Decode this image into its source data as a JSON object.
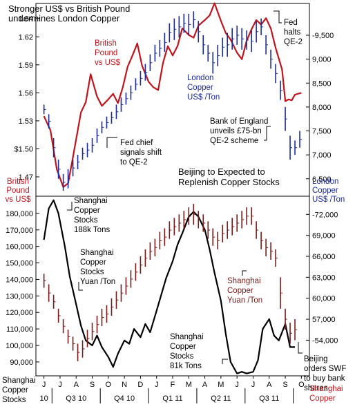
{
  "chart_data": [
    {
      "type": "line",
      "title": "Stronger US$ vs British Pound undermines London Copper",
      "title_lines": [
        "Stronger US$ vs British Pound",
        "undermines London Copper"
      ],
      "left_axis": {
        "ticks": [
          1.47,
          1.5,
          1.53,
          1.56,
          1.59,
          1.62,
          1.64
        ],
        "tick_labels": [
          "1.47",
          "$1.50",
          "1.53",
          "1.56",
          "1.59",
          "1.62",
          "1.64"
        ],
        "range": [
          1.45,
          1.655
        ],
        "label_lines": [
          "British",
          "Pound",
          "vs US$"
        ]
      },
      "right_axis": {
        "ticks": [
          6500,
          7000,
          7500,
          8000,
          8500,
          9000,
          9500
        ],
        "tick_labels": [
          "6,500",
          "7,000",
          "7,500",
          "8,000",
          "8,500",
          "9,000",
          "-9,500"
        ],
        "range": [
          6150,
          10150
        ],
        "label_lines": [
          "London",
          "Copper",
          "US$ /Ton"
        ]
      },
      "series": [
        {
          "name": "British Pound vs US$",
          "color": "#c0141c",
          "axis": "left",
          "x": [
            0,
            0.4,
            0.8,
            1.2,
            1.5,
            1.8,
            2.1,
            2.3,
            2.6,
            2.9,
            3.3,
            3.6,
            4.0,
            4.3,
            4.6,
            4.9,
            5.2,
            5.5,
            5.8,
            6.1,
            6.5,
            6.8,
            7.1,
            7.4,
            7.7,
            8.0,
            8.3,
            8.6,
            9.0,
            9.3,
            9.6,
            10.0,
            10.3,
            10.6,
            11.0,
            11.3,
            11.6,
            12.0,
            12.3,
            12.6,
            12.9,
            13.2,
            13.5,
            13.8,
            14.1,
            14.4,
            14.8,
            15.0,
            15.2,
            15.4,
            15.6,
            15.8,
            16.0
          ],
          "values": [
            1.535,
            1.52,
            1.478,
            1.459,
            1.463,
            1.491,
            1.52,
            1.539,
            1.55,
            1.58,
            1.556,
            1.546,
            1.553,
            1.559,
            1.549,
            1.566,
            1.588,
            1.6,
            1.613,
            1.589,
            1.572,
            1.566,
            1.563,
            1.592,
            1.61,
            1.6,
            1.61,
            1.629,
            1.622,
            1.619,
            1.632,
            1.638,
            1.643,
            1.656,
            1.637,
            1.624,
            1.617,
            1.603,
            1.596,
            1.616,
            1.628,
            1.638,
            1.633,
            1.64,
            1.629,
            1.608,
            1.585,
            1.551,
            1.553,
            1.552,
            1.558,
            1.559,
            1.56
          ]
        },
        {
          "name": "London Copper US$ /Ton",
          "color": "#1b2a9c",
          "axis": "right",
          "style": "high-low bars",
          "x": [
            0,
            0.3,
            0.6,
            0.9,
            1.2,
            1.5,
            1.8,
            2.1,
            2.4,
            2.7,
            3.0,
            3.3,
            3.6,
            3.9,
            4.2,
            4.5,
            4.8,
            5.1,
            5.4,
            5.7,
            6.0,
            6.3,
            6.6,
            6.9,
            7.2,
            7.5,
            7.8,
            8.1,
            8.4,
            8.7,
            9.0,
            9.3,
            9.6,
            9.9,
            10.2,
            10.5,
            10.8,
            11.1,
            11.4,
            11.7,
            12.0,
            12.3,
            12.6,
            12.9,
            13.2,
            13.5,
            13.8,
            14.1,
            14.4,
            14.7,
            15.0,
            15.3,
            15.6,
            15.9
          ],
          "low": [
            7850,
            7550,
            6950,
            6500,
            6250,
            6300,
            6550,
            6700,
            6900,
            6950,
            7050,
            7250,
            7450,
            7550,
            7650,
            7750,
            7900,
            8050,
            8150,
            8350,
            8450,
            8550,
            8750,
            8950,
            9050,
            9150,
            9350,
            9400,
            9450,
            9550,
            9500,
            9650,
            9350,
            9100,
            8950,
            8700,
            8850,
            9050,
            9050,
            9200,
            9300,
            9200,
            9200,
            9150,
            9350,
            9500,
            9100,
            8800,
            8500,
            8150,
            7500,
            6900,
            7000,
            7150
          ],
          "high": [
            8050,
            7850,
            7350,
            6900,
            6600,
            6700,
            6900,
            7000,
            7150,
            7250,
            7350,
            7550,
            7700,
            7800,
            7900,
            8050,
            8200,
            8300,
            8450,
            8600,
            8750,
            8900,
            9100,
            9300,
            9400,
            9550,
            9750,
            9850,
            9900,
            9950,
            9950,
            10000,
            9800,
            9500,
            9300,
            9150,
            9300,
            9450,
            9550,
            9650,
            9700,
            9650,
            9600,
            9600,
            9800,
            9850,
            9500,
            9200,
            8900,
            8550,
            8000,
            7400,
            7300,
            7500
          ]
        }
      ],
      "annotations": [
        {
          "lines": [
            "British",
            "Pound",
            "vs US$"
          ],
          "color": "#c0141c"
        },
        {
          "lines": [
            "London",
            "Copper",
            "US$ /Ton"
          ],
          "color": "#1b2a9c"
        },
        {
          "lines": [
            "Fed",
            "halts",
            "QE-2"
          ],
          "color": "#000000"
        },
        {
          "lines": [
            "Fed chief",
            "signals shift",
            "to QE-2"
          ],
          "color": "#000000"
        },
        {
          "lines": [
            "Bank of England",
            "unveils £75-bn",
            "QE-2 scheme"
          ],
          "color": "#000000"
        }
      ]
    },
    {
      "type": "line",
      "title": "Beijing to Expected to Replenish Copper Stocks",
      "title_lines": [
        "Beijing to Expected to",
        "Replenish Copper Stocks"
      ],
      "left_axis": {
        "ticks": [
          90000,
          100000,
          110000,
          120000,
          130000,
          140000,
          150000,
          160000,
          170000,
          180000
        ],
        "tick_labels": [
          "90,000",
          "100,000",
          "110,000",
          "120,000",
          "130,000",
          "140,000",
          "150,000",
          "160,000",
          "170,000",
          "180,000"
        ],
        "range": [
          82000,
          190000
        ],
        "label_lines": [
          "Shanghai",
          "Copper",
          "Stocks"
        ]
      },
      "right_axis": {
        "ticks": [
          54000,
          57000,
          60000,
          63000,
          66000,
          69000,
          72000
        ],
        "tick_labels": [
          "-54,000",
          "57,000",
          "60,000",
          "63,000",
          "66,000",
          "69,000",
          "-72,000"
        ],
        "range": [
          49000,
          74500
        ],
        "label_lines": [
          "Shanghai",
          "Copper"
        ]
      },
      "series": [
        {
          "name": "Shanghai Copper Stocks",
          "color": "#000000",
          "axis": "left",
          "x": [
            0,
            0.3,
            0.6,
            0.9,
            1.3,
            1.6,
            2.0,
            2.3,
            2.6,
            3.0,
            3.3,
            3.6,
            4.0,
            4.3,
            4.6,
            5.0,
            5.3,
            5.6,
            6.0,
            6.3,
            6.6,
            7.0,
            7.3,
            7.6,
            8.0,
            8.3,
            8.6,
            9.0,
            9.3,
            9.6,
            10.0,
            10.3,
            10.6,
            11.0,
            11.3,
            11.6,
            12.0,
            12.3,
            12.6,
            13.0,
            13.3,
            13.6,
            14.0,
            14.3,
            14.6,
            15.0,
            15.3,
            15.6
          ],
          "values": [
            164000,
            183000,
            188000,
            180000,
            160000,
            142000,
            125000,
            112000,
            103000,
            100000,
            106000,
            99000,
            93000,
            87000,
            95000,
            103000,
            101000,
            110000,
            105000,
            113000,
            108000,
            121000,
            131000,
            141000,
            151000,
            161000,
            168000,
            178000,
            181000,
            178000,
            170000,
            158000,
            144000,
            127000,
            107000,
            90000,
            83000,
            84000,
            83000,
            84000,
            91000,
            110000,
            116000,
            106000,
            103000,
            113000,
            99000,
            99000
          ]
        },
        {
          "name": "Shanghai Copper Yuan /Ton",
          "color": "#7a1a1a",
          "axis": "right",
          "style": "high-low bars",
          "x": [
            0,
            0.3,
            0.6,
            0.9,
            1.2,
            1.5,
            1.8,
            2.1,
            2.4,
            2.7,
            3.0,
            3.3,
            3.6,
            3.9,
            4.2,
            4.5,
            4.8,
            5.1,
            5.4,
            5.7,
            6.0,
            6.3,
            6.6,
            6.9,
            7.2,
            7.5,
            7.8,
            8.1,
            8.4,
            8.7,
            9.0,
            9.3,
            9.6,
            9.9,
            10.2,
            10.5,
            10.8,
            11.1,
            11.4,
            11.7,
            12.0,
            12.3,
            12.6,
            12.9,
            13.2,
            13.5,
            13.8,
            14.1,
            14.4,
            14.7,
            15.0,
            15.3,
            15.6
          ],
          "low": [
            61500,
            59500,
            58500,
            56500,
            55000,
            53500,
            52500,
            51000,
            51500,
            53000,
            54000,
            55000,
            56000,
            56500,
            57500,
            58500,
            59500,
            60500,
            61500,
            62500,
            63500,
            64500,
            65500,
            66000,
            67000,
            67500,
            68500,
            69000,
            69500,
            70000,
            70500,
            70500,
            70000,
            69500,
            68500,
            67500,
            67000,
            68000,
            68500,
            69000,
            69500,
            70000,
            70500,
            70500,
            68500,
            67000,
            66000,
            65500,
            64500,
            58500,
            55500,
            53500,
            54000
          ],
          "high": [
            63500,
            62000,
            60500,
            58500,
            57000,
            55500,
            54500,
            53500,
            54000,
            55500,
            56500,
            57500,
            58500,
            59000,
            60000,
            61000,
            62000,
            63000,
            64000,
            65000,
            66000,
            67000,
            68000,
            68500,
            69500,
            70000,
            71000,
            71500,
            72000,
            72500,
            73000,
            73500,
            72500,
            72000,
            71000,
            70000,
            69500,
            70500,
            71000,
            71500,
            72000,
            72500,
            73000,
            73000,
            71000,
            69500,
            68500,
            68000,
            67000,
            63000,
            58500,
            56500,
            57000
          ]
        }
      ],
      "annotations": [
        {
          "lines": [
            "Shanghai",
            "Copper",
            "Stocks",
            "188k Tons"
          ],
          "color": "#000000"
        },
        {
          "lines": [
            "Shanghai",
            "Copper",
            "Stocks",
            "Yuan /Ton"
          ],
          "color": "#000000"
        },
        {
          "lines": [
            "Shanghai",
            "Copper",
            "Yuan /Ton"
          ],
          "color": "#7a1a1a"
        },
        {
          "lines": [
            "Shanghai",
            "Copper",
            "Stocks",
            "81k Tons"
          ],
          "color": "#000000"
        },
        {
          "lines": [
            "Beijing",
            "orders SWF",
            "to buy bank",
            "shares"
          ],
          "color": "#000000"
        },
        {
          "lines": [
            "Shanghai",
            "Copper",
            "Stocks"
          ],
          "color": "#000000"
        },
        {
          "lines": [
            "Shanghai",
            "Copper"
          ],
          "color": "#c0141c"
        }
      ]
    }
  ],
  "x_axis": {
    "month_labels": [
      "J",
      "J",
      "A",
      "S",
      "O",
      "N",
      "D",
      "J",
      "F",
      "M",
      "A",
      "M",
      "J",
      "J",
      "A",
      "S",
      "O"
    ],
    "period_labels": [
      "10",
      "Q3 10",
      "Q4 10",
      "Q1 11",
      "Q2 11",
      "Q3 11"
    ]
  }
}
